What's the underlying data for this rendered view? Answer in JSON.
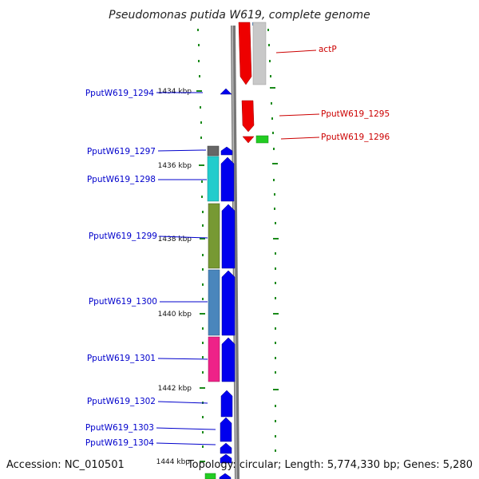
{
  "title": "Pseudomonas putida W619, complete genome",
  "footer": {
    "accession": "Accession: NC_010501",
    "topology": "Topology: circular; Length: 5,774,330 bp; Genes: 5,280"
  },
  "colors": {
    "backbone": "#888888",
    "tick": "#1a8a1a",
    "forward_gene": "#0000ee",
    "reverse_gene": "#ee0000",
    "left_label": "#0000cc",
    "right_label": "#cc0000"
  },
  "kbp_markers": [
    "1434 kbp",
    "1436 kbp",
    "1438 kbp",
    "1440 kbp",
    "1442 kbp",
    "1444 kbp"
  ],
  "left_labels": [
    "PputW619_1294",
    "PputW619_1297",
    "PputW619_1298",
    "PputW619_1299",
    "PputW619_1300",
    "PputW619_1301",
    "PputW619_1302",
    "PputW619_1303",
    "PputW619_1304"
  ],
  "right_labels": [
    "actP",
    "PputW619_1295",
    "PputW619_1296"
  ]
}
